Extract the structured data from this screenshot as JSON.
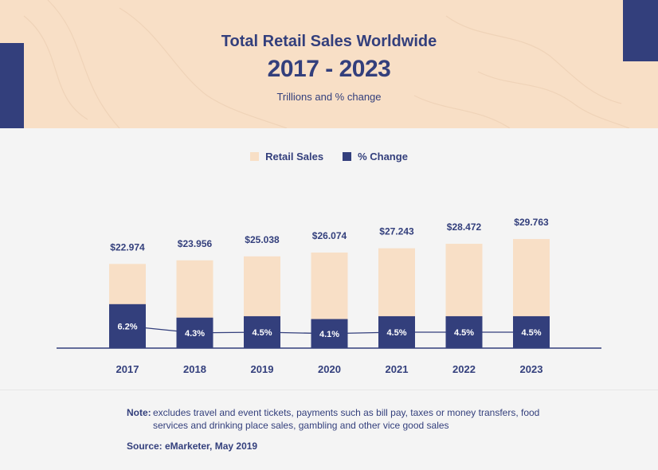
{
  "header": {
    "title": "Total Retail Sales Worldwide",
    "years": "2017 - 2023",
    "unit": "Trillions and % change"
  },
  "colors": {
    "header_bg": "#f8dfc6",
    "navy": "#333f7c",
    "retail_bar": "#f8dfc6",
    "change_bar": "#333f7c",
    "page_bg": "#f4f4f4"
  },
  "legend": {
    "retail": "Retail Sales",
    "change": "% Change"
  },
  "chart_data": {
    "type": "bar",
    "categories": [
      "2017",
      "2018",
      "2019",
      "2020",
      "2021",
      "2022",
      "2023"
    ],
    "series": [
      {
        "name": "Retail Sales",
        "values": [
          22.974,
          23.956,
          25.038,
          26.074,
          27.243,
          28.472,
          29.763
        ],
        "labels": [
          "$22.974",
          "$23.956",
          "$25.038",
          "$26.074",
          "$27.243",
          "$28.472",
          "$29.763"
        ]
      },
      {
        "name": "% Change",
        "values": [
          6.2,
          4.3,
          4.5,
          4.1,
          4.5,
          4.5,
          4.5
        ],
        "labels": [
          "6.2%",
          "4.3%",
          "4.5%",
          "4.1%",
          "4.5%",
          "4.5%",
          "4.5%"
        ]
      }
    ],
    "legend_position": "top-center",
    "grid": false
  },
  "note": {
    "label": "Note:",
    "text": "excludes travel and event tickets, payments such as bill pay, taxes or money transfers, food services and drinking place sales, gambling and other vice good sales"
  },
  "source": "Source: eMarketer, May 2019"
}
